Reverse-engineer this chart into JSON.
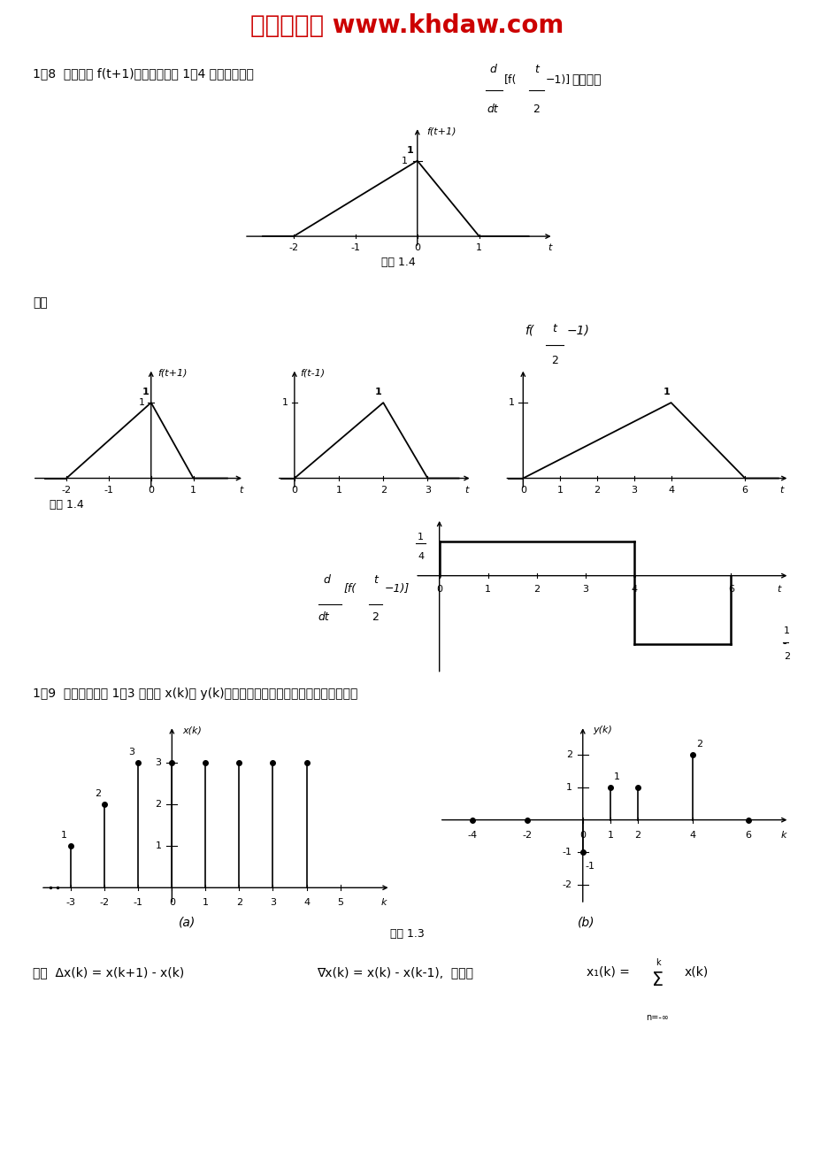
{
  "title": "课后答案网 www.khdaw.com",
  "title_color": "#cc0000",
  "bg_color": "#ffffff",
  "p18_line1": "1．8  已知信号 f(t+1)的波形如题图 1．4 所示，试画出",
  "p18_suffix": "的波形。",
  "jie1": "解：",
  "titu14": "题图 1.4",
  "p19": "1．9  分别计算题图 1．3 中信号 x(k)和 y(k)的一阶前向差分、一阶后向差分和迭分。",
  "jie2_a": "解：  Δx(k) = x(k+1) - x(k)",
  "jie2_b": "∇x(k) = x(k) - x(k-1),  迭分：",
  "jie2_c": "x₁(k) =",
  "jie2_d": "x(k)",
  "cap_a": "(a)",
  "cap_b": "(b)",
  "titu13": "题图 1.3"
}
